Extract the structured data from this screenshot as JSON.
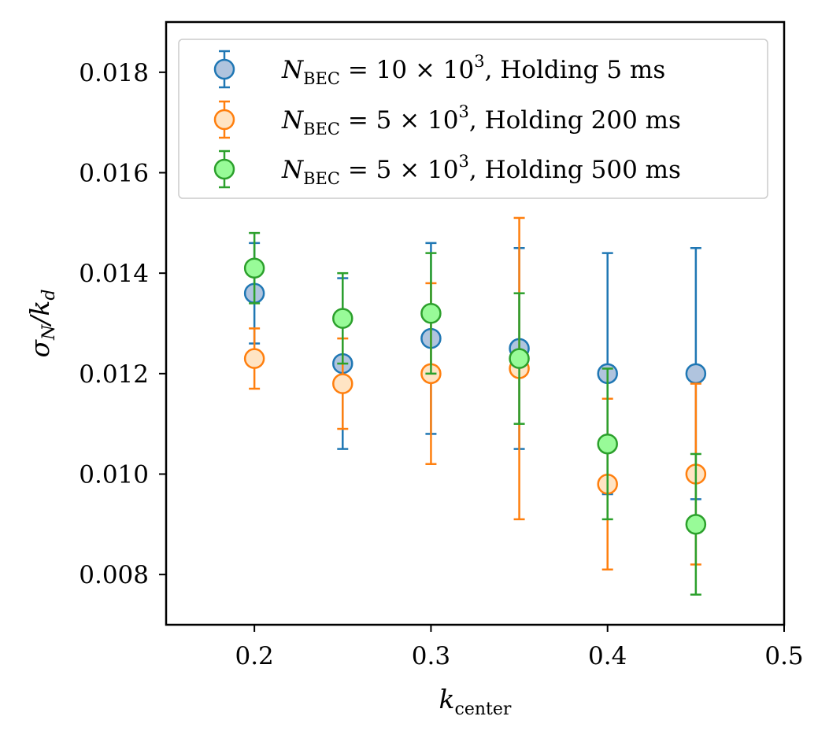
{
  "chart_data": {
    "type": "scatter",
    "xlabel": "k_center",
    "xlabel_main": "k",
    "xlabel_sub": "center",
    "ylabel": "σ_N/k_d",
    "xlim": [
      0.15,
      0.5
    ],
    "ylim": [
      0.007,
      0.019
    ],
    "xticks": [
      "0.2",
      "0.3",
      "0.4",
      "0.5"
    ],
    "yticks": [
      "0.008",
      "0.010",
      "0.012",
      "0.014",
      "0.016",
      "0.018"
    ],
    "legend_position": "top",
    "grid": false,
    "series": [
      {
        "name": "N_BEC = 10 × 10^3, Holding 5 ms",
        "color": "#1f77b4",
        "fill": "#b0c4de",
        "x": [
          0.2,
          0.25,
          0.3,
          0.35,
          0.4,
          0.45
        ],
        "y": [
          0.0136,
          0.0122,
          0.0127,
          0.0125,
          0.012,
          0.012
        ],
        "yerr_low": [
          0.0126,
          0.0105,
          0.0108,
          0.0105,
          0.0096,
          0.0095
        ],
        "yerr_high": [
          0.0146,
          0.0139,
          0.0146,
          0.0145,
          0.0144,
          0.0145
        ]
      },
      {
        "name": "N_BEC = 5 × 10^3, Holding 200 ms",
        "color": "#ff7f0e",
        "fill": "#ffe4c4",
        "x": [
          0.2,
          0.25,
          0.3,
          0.35,
          0.4,
          0.45
        ],
        "y": [
          0.0123,
          0.0118,
          0.012,
          0.0121,
          0.0098,
          0.01
        ],
        "yerr_low": [
          0.0117,
          0.0109,
          0.0102,
          0.0091,
          0.0081,
          0.0082
        ],
        "yerr_high": [
          0.0129,
          0.0127,
          0.0138,
          0.0151,
          0.0115,
          0.0118
        ]
      },
      {
        "name": "N_BEC = 5 × 10^3, Holding 500 ms",
        "color": "#2ca02c",
        "fill": "#98fb98",
        "x": [
          0.2,
          0.25,
          0.3,
          0.35,
          0.4,
          0.45
        ],
        "y": [
          0.0141,
          0.0131,
          0.0132,
          0.0123,
          0.0106,
          0.009
        ],
        "yerr_low": [
          0.0134,
          0.0122,
          0.012,
          0.011,
          0.0091,
          0.0076
        ],
        "yerr_high": [
          0.0148,
          0.014,
          0.0144,
          0.0136,
          0.0121,
          0.0104
        ]
      }
    ],
    "legend": [
      {
        "prefix": "N",
        "sub": "BEC",
        "eq": " = 10 × 10",
        "sup": "3",
        "rest": ", Holding 5 ms"
      },
      {
        "prefix": "N",
        "sub": "BEC",
        "eq": " = 5 × 10",
        "sup": "3",
        "rest": ", Holding 200 ms"
      },
      {
        "prefix": "N",
        "sub": "BEC",
        "eq": " = 5 × 10",
        "sup": "3",
        "rest": ", Holding 500 ms"
      }
    ]
  }
}
